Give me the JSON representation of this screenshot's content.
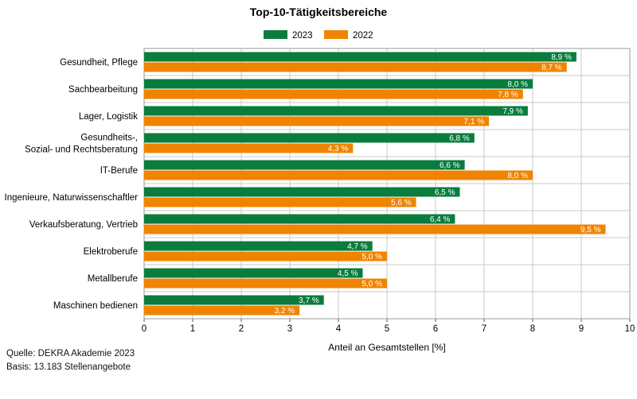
{
  "chart_data": {
    "type": "bar",
    "orientation": "horizontal",
    "title": "Top-10-Tätigkeitsbereiche",
    "xlabel": "Anteil an Gesamtstellen [%]",
    "ylabel": "",
    "xlim": [
      0,
      10
    ],
    "x_ticks": [
      "0",
      "1",
      "2",
      "3",
      "4",
      "5",
      "6",
      "7",
      "8",
      "9",
      "10"
    ],
    "grid": "vertical",
    "legend_position": "top",
    "categories": [
      "Gesundheit, Pflege",
      "Sachbearbeitung",
      "Lager, Logistik",
      "Gesundheits-,\nSozial- und Rechtsberatung",
      "IT-Berufe",
      "Ingenieure, Naturwissenschaftler",
      "Verkaufsberatung, Vertrieb",
      "Elektroberufe",
      "Metallberufe",
      "Maschinen bedienen"
    ],
    "series": [
      {
        "name": "2023",
        "color": "#0a7d3e",
        "values": [
          8.9,
          8.0,
          7.9,
          6.8,
          6.6,
          6.5,
          6.4,
          4.7,
          4.5,
          3.7
        ],
        "labels": [
          "8,9 %",
          "8,0 %",
          "7,9 %",
          "6,8 %",
          "6,6 %",
          "6,5 %",
          "6,4 %",
          "4,7 %",
          "4,5 %",
          "3,7 %"
        ]
      },
      {
        "name": "2022",
        "color": "#f08400",
        "values": [
          8.7,
          7.8,
          7.1,
          4.3,
          8.0,
          5.6,
          9.5,
          5.0,
          5.0,
          3.2
        ],
        "labels": [
          "8,7 %",
          "7,8 %",
          "7,1 %",
          "4,3 %",
          "8,0 %",
          "5,6 %",
          "9,5 %",
          "5,0 %",
          "5,0 %",
          "3,2 %"
        ]
      }
    ]
  },
  "footer": {
    "source": "Quelle: DEKRA Akademie 2023",
    "basis": "Basis: 13.183 Stellenangebote"
  }
}
